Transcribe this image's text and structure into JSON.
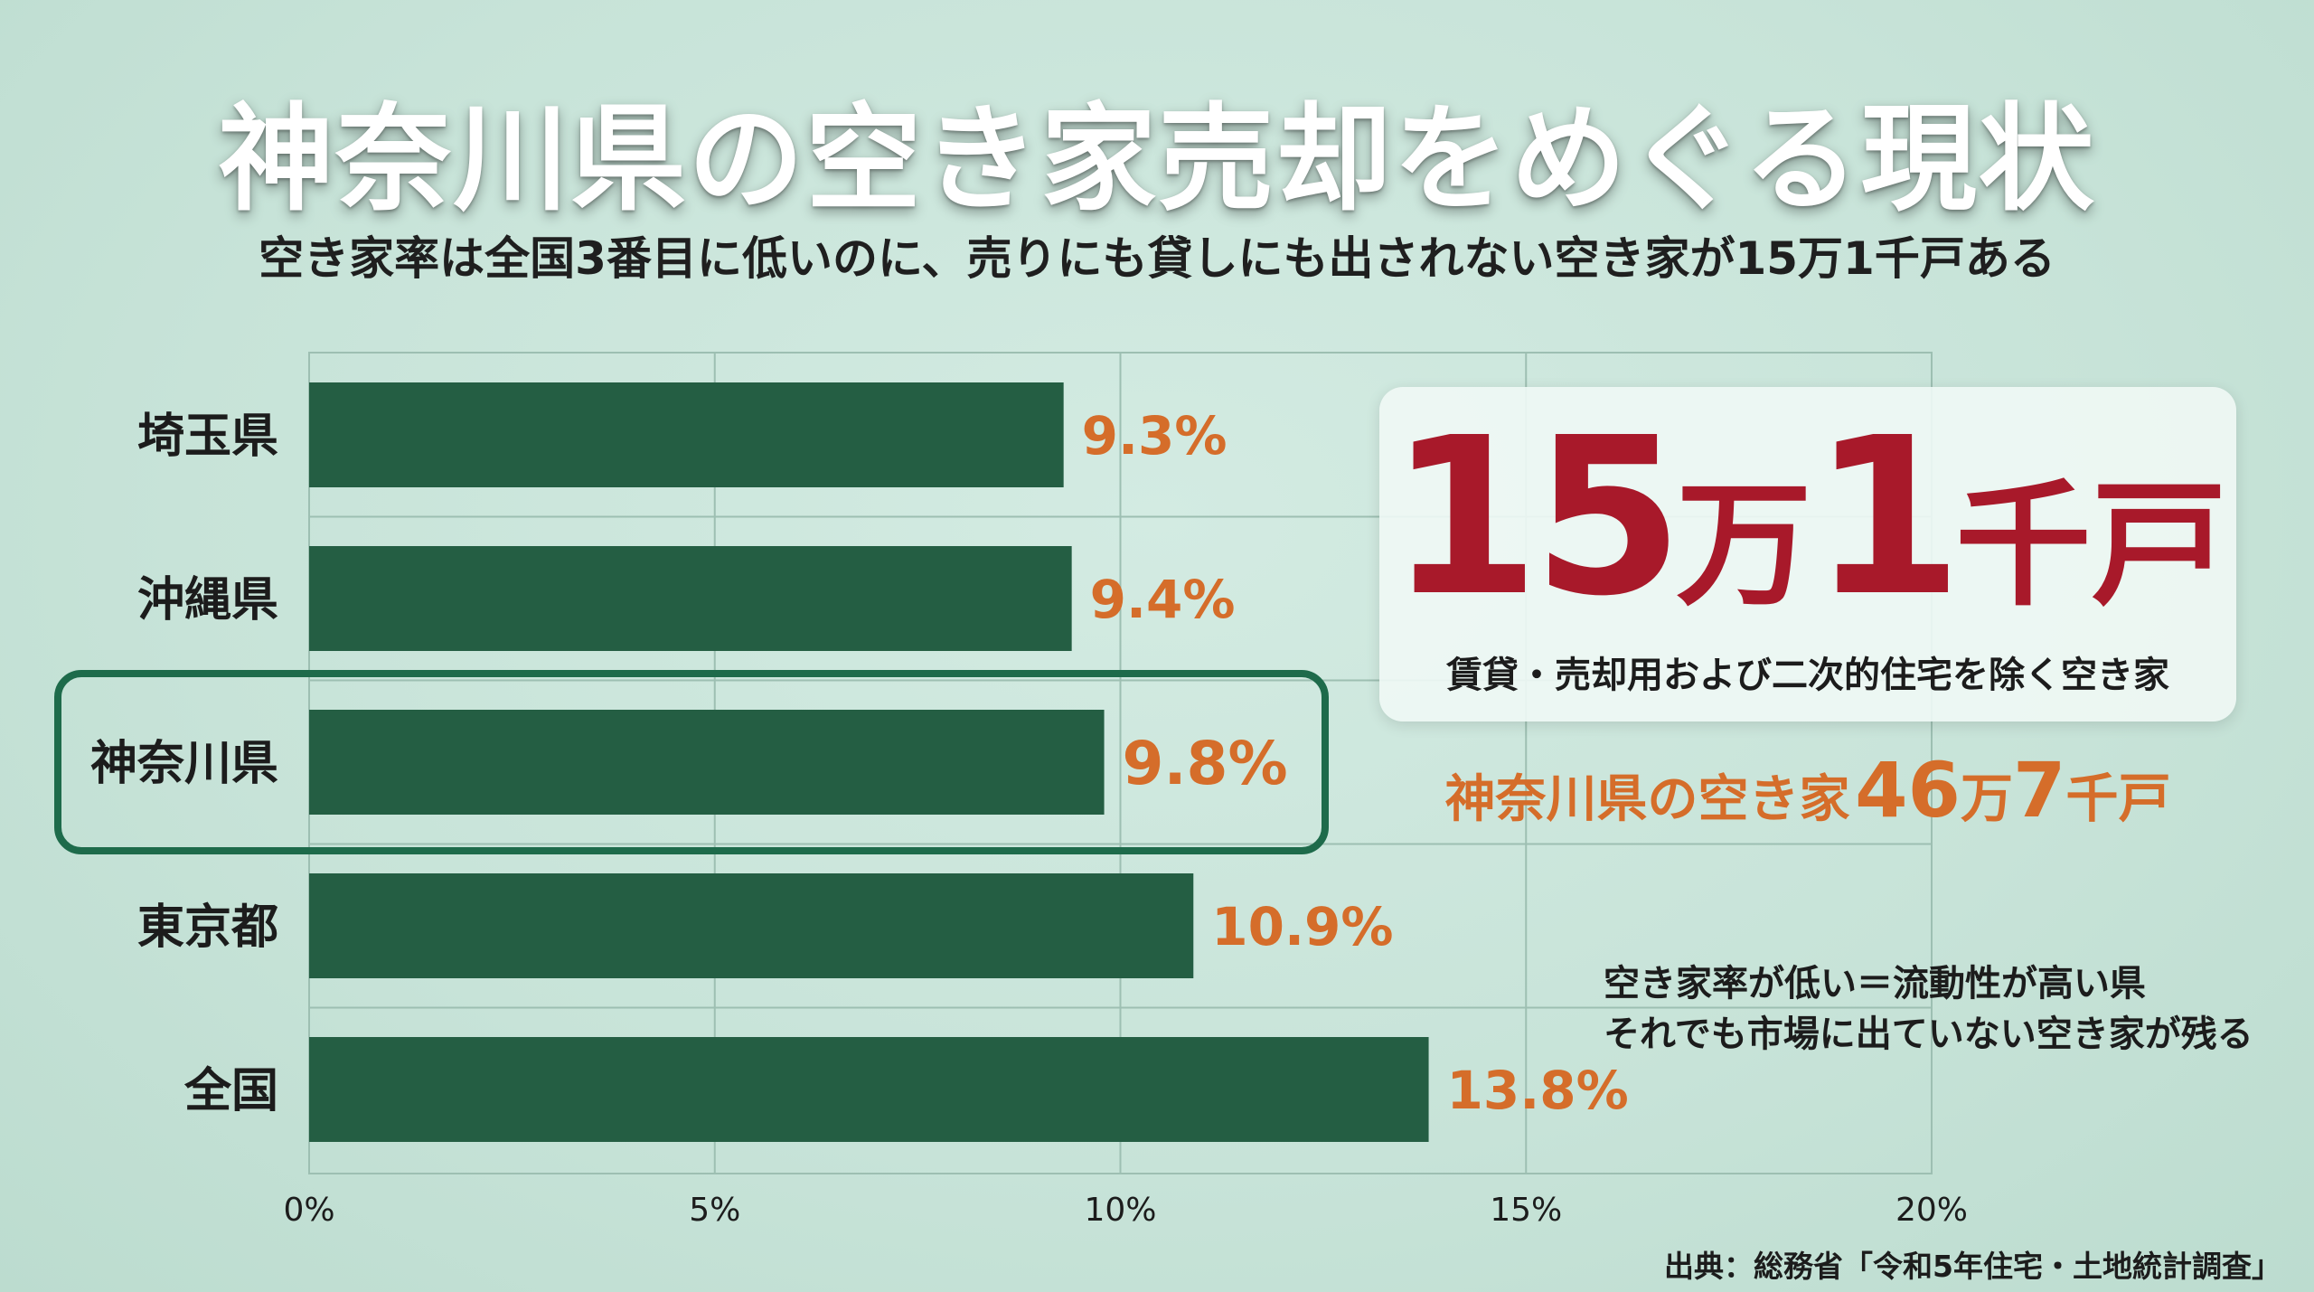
{
  "title": "神奈川県の空き家売却をめぐる現状",
  "subtitle": "空き家率は全国3番目に低いのに、売りにも貸しにも出されない空き家が15万1千戸ある",
  "chart_data": {
    "type": "bar",
    "orientation": "horizontal",
    "categories": [
      "埼玉県",
      "沖縄県",
      "神奈川県",
      "東京都",
      "全国"
    ],
    "values": [
      9.3,
      9.4,
      9.8,
      10.9,
      13.8
    ],
    "value_labels": [
      "9.3%",
      "9.4%",
      "9.8%",
      "10.9%",
      "13.8%"
    ],
    "xlim": [
      0,
      20
    ],
    "x_ticks": [
      0,
      5,
      10,
      15,
      20
    ],
    "x_tick_labels": [
      "0%",
      "5%",
      "10%",
      "15%",
      "20%"
    ],
    "grid": true,
    "highlight_category": "神奈川県",
    "bar_color": "#245e43",
    "label_color": "#d56d2a",
    "highlight_color": "#1e6b4b"
  },
  "stat_card": {
    "num1": "15",
    "unit1": "万",
    "num2": "1",
    "unit2": "千戸",
    "caption": "賃貸・売却用および二次的住宅を除く空き家",
    "color": "#a8192a"
  },
  "total": {
    "label": "神奈川県の空き家",
    "num1": "46",
    "unit1": "万",
    "num2": "7",
    "unit2": "千戸",
    "color": "#d56d2a"
  },
  "note": {
    "line1": "空き家率が低い＝流動性が高い県",
    "line2": "それでも市場に出ていない空き家が残る"
  },
  "source": "出典：総務省「令和5年住宅・土地統計調査」"
}
